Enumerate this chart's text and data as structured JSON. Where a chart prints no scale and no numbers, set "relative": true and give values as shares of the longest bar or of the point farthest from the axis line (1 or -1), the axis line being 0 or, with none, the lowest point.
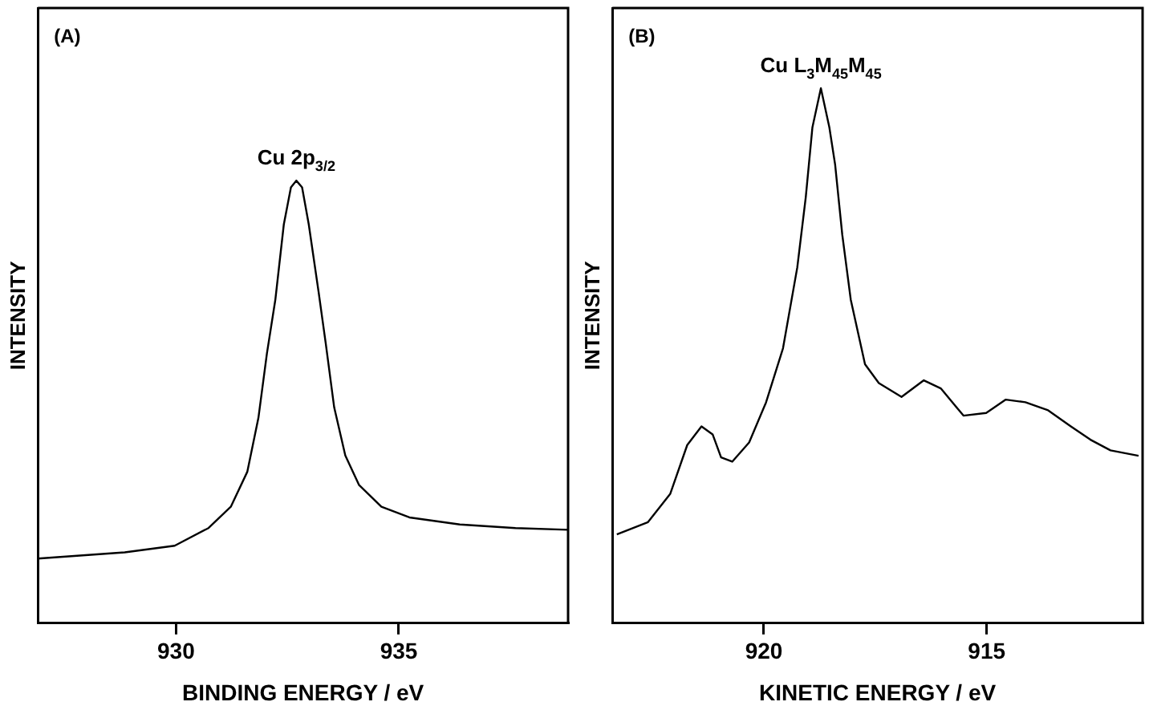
{
  "chart_data": [
    {
      "type": "line",
      "title": "(A)",
      "xlabel": "BINDING ENERGY / eV",
      "ylabel": "INTENSITY",
      "relative": true,
      "tick_labels": "x",
      "xlim": [
        926.9,
        938.8
      ],
      "xticks": [
        930,
        935
      ],
      "grid": false,
      "legend": false,
      "annotations": [
        {
          "text": "Cu 2p$_{3/2}$",
          "x": 932.7,
          "y": 1
        }
      ],
      "series": [
        {
          "color": "#000000",
          "x": [
            926.9,
            928.85,
            929.97,
            930.73,
            931.23,
            931.6,
            931.85,
            932.04,
            932.23,
            932.42,
            932.58,
            932.7,
            932.83,
            932.98,
            933.2,
            933.36,
            933.55,
            933.8,
            934.11,
            934.61,
            935.24,
            936.37,
            937.62,
            938.8
          ],
          "values": [
            0.146,
            0.16,
            0.175,
            0.215,
            0.263,
            0.342,
            0.464,
            0.609,
            0.731,
            0.901,
            0.985,
            1,
            0.985,
            0.901,
            0.749,
            0.633,
            0.488,
            0.379,
            0.312,
            0.263,
            0.239,
            0.223,
            0.215,
            0.211
          ]
        }
      ]
    },
    {
      "type": "line",
      "title": "(B)",
      "xlabel": "KINETIC ENERGY / eV",
      "ylabel": "INTENSITY",
      "relative": true,
      "tick_labels": "x",
      "xlim": [
        923.4,
        911.5
      ],
      "xticks": [
        920,
        915
      ],
      "grid": false,
      "legend": false,
      "annotations": [
        {
          "text": "Cu L$_{3}$M$_{45}$M$_{45}$",
          "x": 918.72,
          "y": 1
        }
      ],
      "series": [
        {
          "color": "#000000",
          "x": [
            923.3,
            922.6,
            922.1,
            921.72,
            921.4,
            921.15,
            920.96,
            920.71,
            920.33,
            919.95,
            919.57,
            919.25,
            919.06,
            918.91,
            918.72,
            918.53,
            918.4,
            918.24,
            918.05,
            917.73,
            917.42,
            916.91,
            916.41,
            916.03,
            915.52,
            915.01,
            914.57,
            914.13,
            913.62,
            913.11,
            912.67,
            912.22,
            911.59
          ],
          "values": [
            0.166,
            0.189,
            0.242,
            0.333,
            0.368,
            0.353,
            0.31,
            0.302,
            0.338,
            0.413,
            0.514,
            0.665,
            0.796,
            0.927,
            1,
            0.927,
            0.857,
            0.726,
            0.605,
            0.484,
            0.449,
            0.423,
            0.454,
            0.439,
            0.388,
            0.393,
            0.418,
            0.413,
            0.398,
            0.368,
            0.343,
            0.323,
            0.313
          ]
        }
      ]
    }
  ]
}
